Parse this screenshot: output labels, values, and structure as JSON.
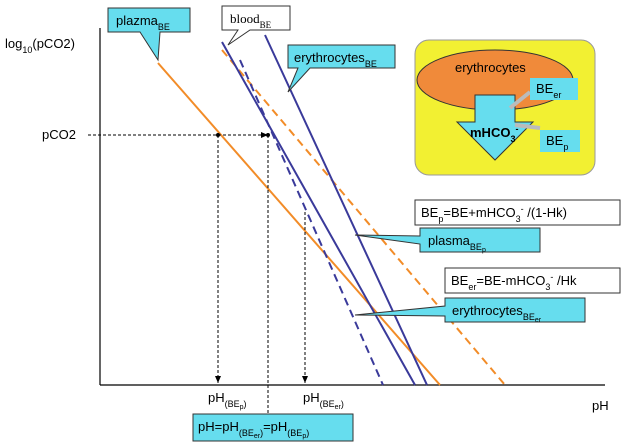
{
  "axes": {
    "y_label": [
      "log",
      "10",
      "(pCO2)"
    ],
    "x_label": "pH",
    "pco2": "pCO2"
  },
  "callouts": {
    "plazma_be": [
      "plazma",
      "BE"
    ],
    "blood_be": [
      "blood",
      "BE"
    ],
    "erythrocytes_be": [
      "erythrocytes",
      "BE"
    ],
    "bep_formula": [
      "BE",
      "p",
      "=BE+mHCO",
      "3",
      "-",
      " /(1-Hk)"
    ],
    "plasma_bep": [
      "plasma",
      "BE",
      "p"
    ],
    "beer_formula": [
      "BE",
      "er",
      "=BE-mHCO",
      "3",
      "-",
      " /Hk"
    ],
    "erythrocytes_beer": [
      "erythrocytes",
      "BE",
      "er"
    ]
  },
  "ph_labels": {
    "ph_bep": [
      "pH",
      "(BE",
      "p",
      ")"
    ],
    "ph_beer": [
      "pH",
      "(BE",
      "er",
      ")"
    ],
    "ph_equal": [
      "pH=pH",
      "(BE",
      "er",
      ")",
      "=pH",
      "(BE",
      "p",
      ")"
    ]
  },
  "inset": {
    "erythrocytes": "erythrocytes",
    "be_er": [
      "BE",
      "er"
    ],
    "mhco3": [
      "mHCO",
      "3",
      "-"
    ],
    "be_p": [
      "BE",
      "p"
    ]
  }
}
